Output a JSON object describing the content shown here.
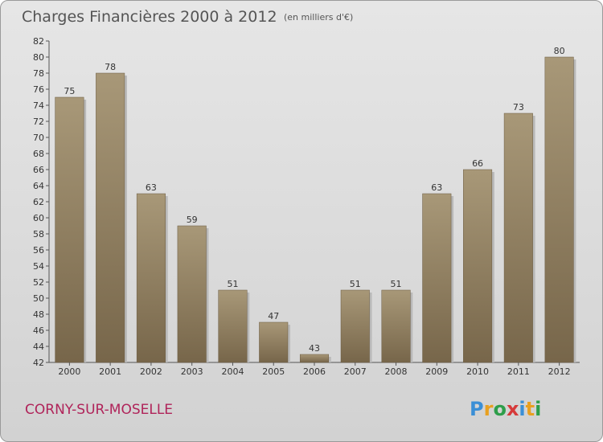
{
  "header": {
    "title": "Charges Financières 2000 à 2012",
    "unit": "(en milliers d'€)"
  },
  "footer": {
    "commune": "CORNY-SUR-MOSELLE",
    "logo_letters": [
      "P",
      "r",
      "o",
      "x",
      "i",
      "t",
      "i"
    ]
  },
  "colors": {
    "bar_top": "#a89878",
    "bar_bottom": "#77664a",
    "commune": "#b0245a",
    "logo": [
      "#3b8fd6",
      "#e8a020",
      "#2e9e4a",
      "#d63a3a",
      "#3b8fd6",
      "#e8a020",
      "#2e9e4a"
    ]
  },
  "chart_data": {
    "type": "bar",
    "title": "Charges Financières 2000 à 2012",
    "subtitle": "(en milliers d'€)",
    "xlabel": "",
    "ylabel": "",
    "categories": [
      "2000",
      "2001",
      "2002",
      "2003",
      "2004",
      "2005",
      "2006",
      "2007",
      "2008",
      "2009",
      "2010",
      "2011",
      "2012"
    ],
    "values": [
      75,
      78,
      63,
      59,
      51,
      47,
      43,
      51,
      51,
      63,
      66,
      73,
      80
    ],
    "ylim": [
      42,
      82
    ],
    "yticks": [
      42,
      44,
      46,
      48,
      50,
      52,
      54,
      56,
      58,
      60,
      62,
      64,
      66,
      68,
      70,
      72,
      74,
      76,
      78,
      80,
      82
    ],
    "grid": false,
    "legend": "none"
  }
}
